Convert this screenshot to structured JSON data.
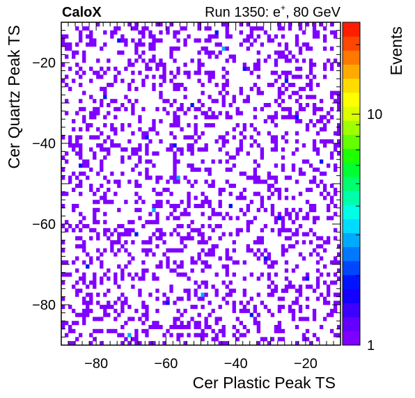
{
  "chart_data": {
    "type": "heatmap",
    "label_left": "CaloX",
    "label_right_prefix": "Run 1350: e",
    "label_right_sup": "+",
    "label_right_suffix": ", 80 GeV",
    "xlabel": "Cer Plastic Peak TS",
    "ylabel": "Cer Quartz Peak TS",
    "zlabel": "Events",
    "xlim": [
      -90,
      -10
    ],
    "ylim": [
      -90,
      -10
    ],
    "x_ticks": [
      -80,
      -60,
      -40,
      -20
    ],
    "y_ticks": [
      -80,
      -60,
      -40,
      -20
    ],
    "z_scale": "log",
    "zlim": [
      1,
      25
    ],
    "z_ticks": [
      1,
      10
    ],
    "bin_width": 1,
    "occupancy_fraction": 0.26,
    "typical_value": 1,
    "hot_bins": [
      {
        "x": -63.5,
        "y": -56.5,
        "v": 3
      },
      {
        "x": -56.5,
        "y": -48.5,
        "v": 3
      },
      {
        "x": -70.5,
        "y": -87.5,
        "v": 3
      },
      {
        "x": -82.5,
        "y": -70.5,
        "v": 2
      },
      {
        "x": -43.5,
        "y": -16.5,
        "v": 3
      },
      {
        "x": -77.5,
        "y": -28.5,
        "v": 2
      },
      {
        "x": -41.5,
        "y": -55.5,
        "v": 2
      },
      {
        "x": -49.5,
        "y": -77.5,
        "v": 3
      },
      {
        "x": -22.5,
        "y": -33.5,
        "v": 2
      },
      {
        "x": -65.5,
        "y": -38.5,
        "v": 2
      },
      {
        "x": -31.5,
        "y": -68.5,
        "v": 2
      },
      {
        "x": -15.5,
        "y": -44.5,
        "v": 2
      },
      {
        "x": -37.5,
        "y": -21.5,
        "v": 2
      },
      {
        "x": -59.5,
        "y": -79.5,
        "v": 2
      },
      {
        "x": -73.5,
        "y": -14.5,
        "v": 2
      },
      {
        "x": -27.5,
        "y": -58.5,
        "v": 2
      },
      {
        "x": -52.5,
        "y": -30.5,
        "v": 2
      },
      {
        "x": -84.5,
        "y": -45.5,
        "v": 2
      },
      {
        "x": -35.5,
        "y": -82.5,
        "v": 2
      },
      {
        "x": -45.5,
        "y": -12.5,
        "v": 2
      },
      {
        "x": -19.5,
        "y": -73.5,
        "v": 2
      },
      {
        "x": -68.5,
        "y": -62.5,
        "v": 2
      },
      {
        "x": -57.5,
        "y": -40.5,
        "v": 2
      },
      {
        "x": -25.5,
        "y": -24.5,
        "v": 2
      }
    ],
    "palette": [
      "#7f00ff",
      "#6400ff",
      "#3c00ff",
      "#1400ff",
      "#0014ff",
      "#0046ff",
      "#0078ff",
      "#00aaff",
      "#00dcff",
      "#00ffe6",
      "#00ffaa",
      "#00ff6e",
      "#00ff32",
      "#1eff00",
      "#64ff00",
      "#a0ff00",
      "#dcff00",
      "#ffff00",
      "#ffdc00",
      "#ffaa00",
      "#ff7800",
      "#ff4600",
      "#ff1e00"
    ]
  }
}
